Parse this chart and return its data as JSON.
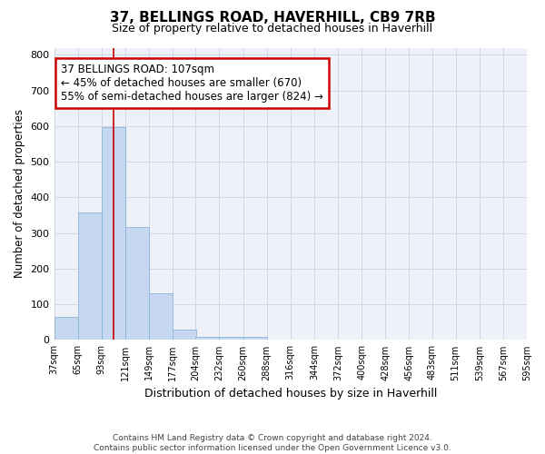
{
  "title": "37, BELLINGS ROAD, HAVERHILL, CB9 7RB",
  "subtitle": "Size of property relative to detached houses in Haverhill",
  "xlabel": "Distribution of detached houses by size in Haverhill",
  "ylabel": "Number of detached properties",
  "bin_labels": [
    "37sqm",
    "65sqm",
    "93sqm",
    "121sqm",
    "149sqm",
    "177sqm",
    "204sqm",
    "232sqm",
    "260sqm",
    "288sqm",
    "316sqm",
    "344sqm",
    "372sqm",
    "400sqm",
    "428sqm",
    "456sqm",
    "483sqm",
    "511sqm",
    "539sqm",
    "567sqm",
    "595sqm"
  ],
  "bin_edges": [
    37,
    65,
    93,
    121,
    149,
    177,
    204,
    232,
    260,
    288,
    316,
    344,
    372,
    400,
    428,
    456,
    483,
    511,
    539,
    567,
    595
  ],
  "bar_values": [
    65,
    358,
    597,
    317,
    130,
    28,
    10,
    9,
    10,
    0,
    0,
    0,
    0,
    0,
    0,
    0,
    0,
    0,
    0,
    0
  ],
  "bar_color": "#c5d8f0",
  "bar_edge_color": "#8ab4d8",
  "grid_color": "#d0d8e8",
  "background_color": "#eef2f8",
  "property_line_x": 107,
  "property_line_color": "#cc0000",
  "annotation_line1": "37 BELLINGS ROAD: 107sqm",
  "annotation_line2": "← 45% of detached houses are smaller (670)",
  "annotation_line3": "55% of semi-detached houses are larger (824) →",
  "annotation_box_color": "#cc0000",
  "ylim": [
    0,
    820
  ],
  "yticks": [
    0,
    100,
    200,
    300,
    400,
    500,
    600,
    700,
    800
  ],
  "footnote": "Contains HM Land Registry data © Crown copyright and database right 2024.\nContains public sector information licensed under the Open Government Licence v3.0."
}
